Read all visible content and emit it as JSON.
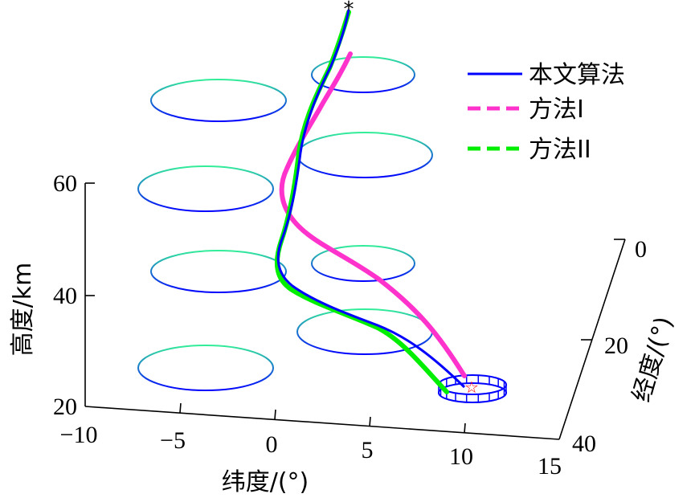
{
  "chart_data": {
    "type": "line",
    "xlabel": "纬度/(°)",
    "ylabel": "经度/(°)",
    "zlabel": "高度/km",
    "xlim": [
      -10,
      15
    ],
    "ylim": [
      0,
      40
    ],
    "zlim": [
      20,
      60
    ],
    "xticks": [
      "−10",
      "−5",
      "0",
      "5",
      "10",
      "15"
    ],
    "yticks": [
      "0",
      "20",
      "40"
    ],
    "zticks": [
      "20",
      "40",
      "60"
    ],
    "legend": {
      "position": "top-right"
    },
    "series": [
      {
        "name": "本文算法",
        "color": "#0000ff",
        "style": "solid"
      },
      {
        "name": "方法I",
        "color": "#ff33cc",
        "style": "dashed"
      },
      {
        "name": "方法II",
        "color": "#00ee00",
        "style": "dashed"
      }
    ],
    "markers": [
      {
        "symbol": "*",
        "color": "#000000"
      },
      {
        "symbol": "☆",
        "color": "#ff0000"
      }
    ],
    "obstacles": [
      {
        "shape": "cylinder",
        "count": 5,
        "color_bottom": "#0000ff",
        "color_top": "#33ee99"
      },
      {
        "shape": "cylinder",
        "count": 1,
        "color": "#0000ff"
      }
    ],
    "grid": false
  }
}
